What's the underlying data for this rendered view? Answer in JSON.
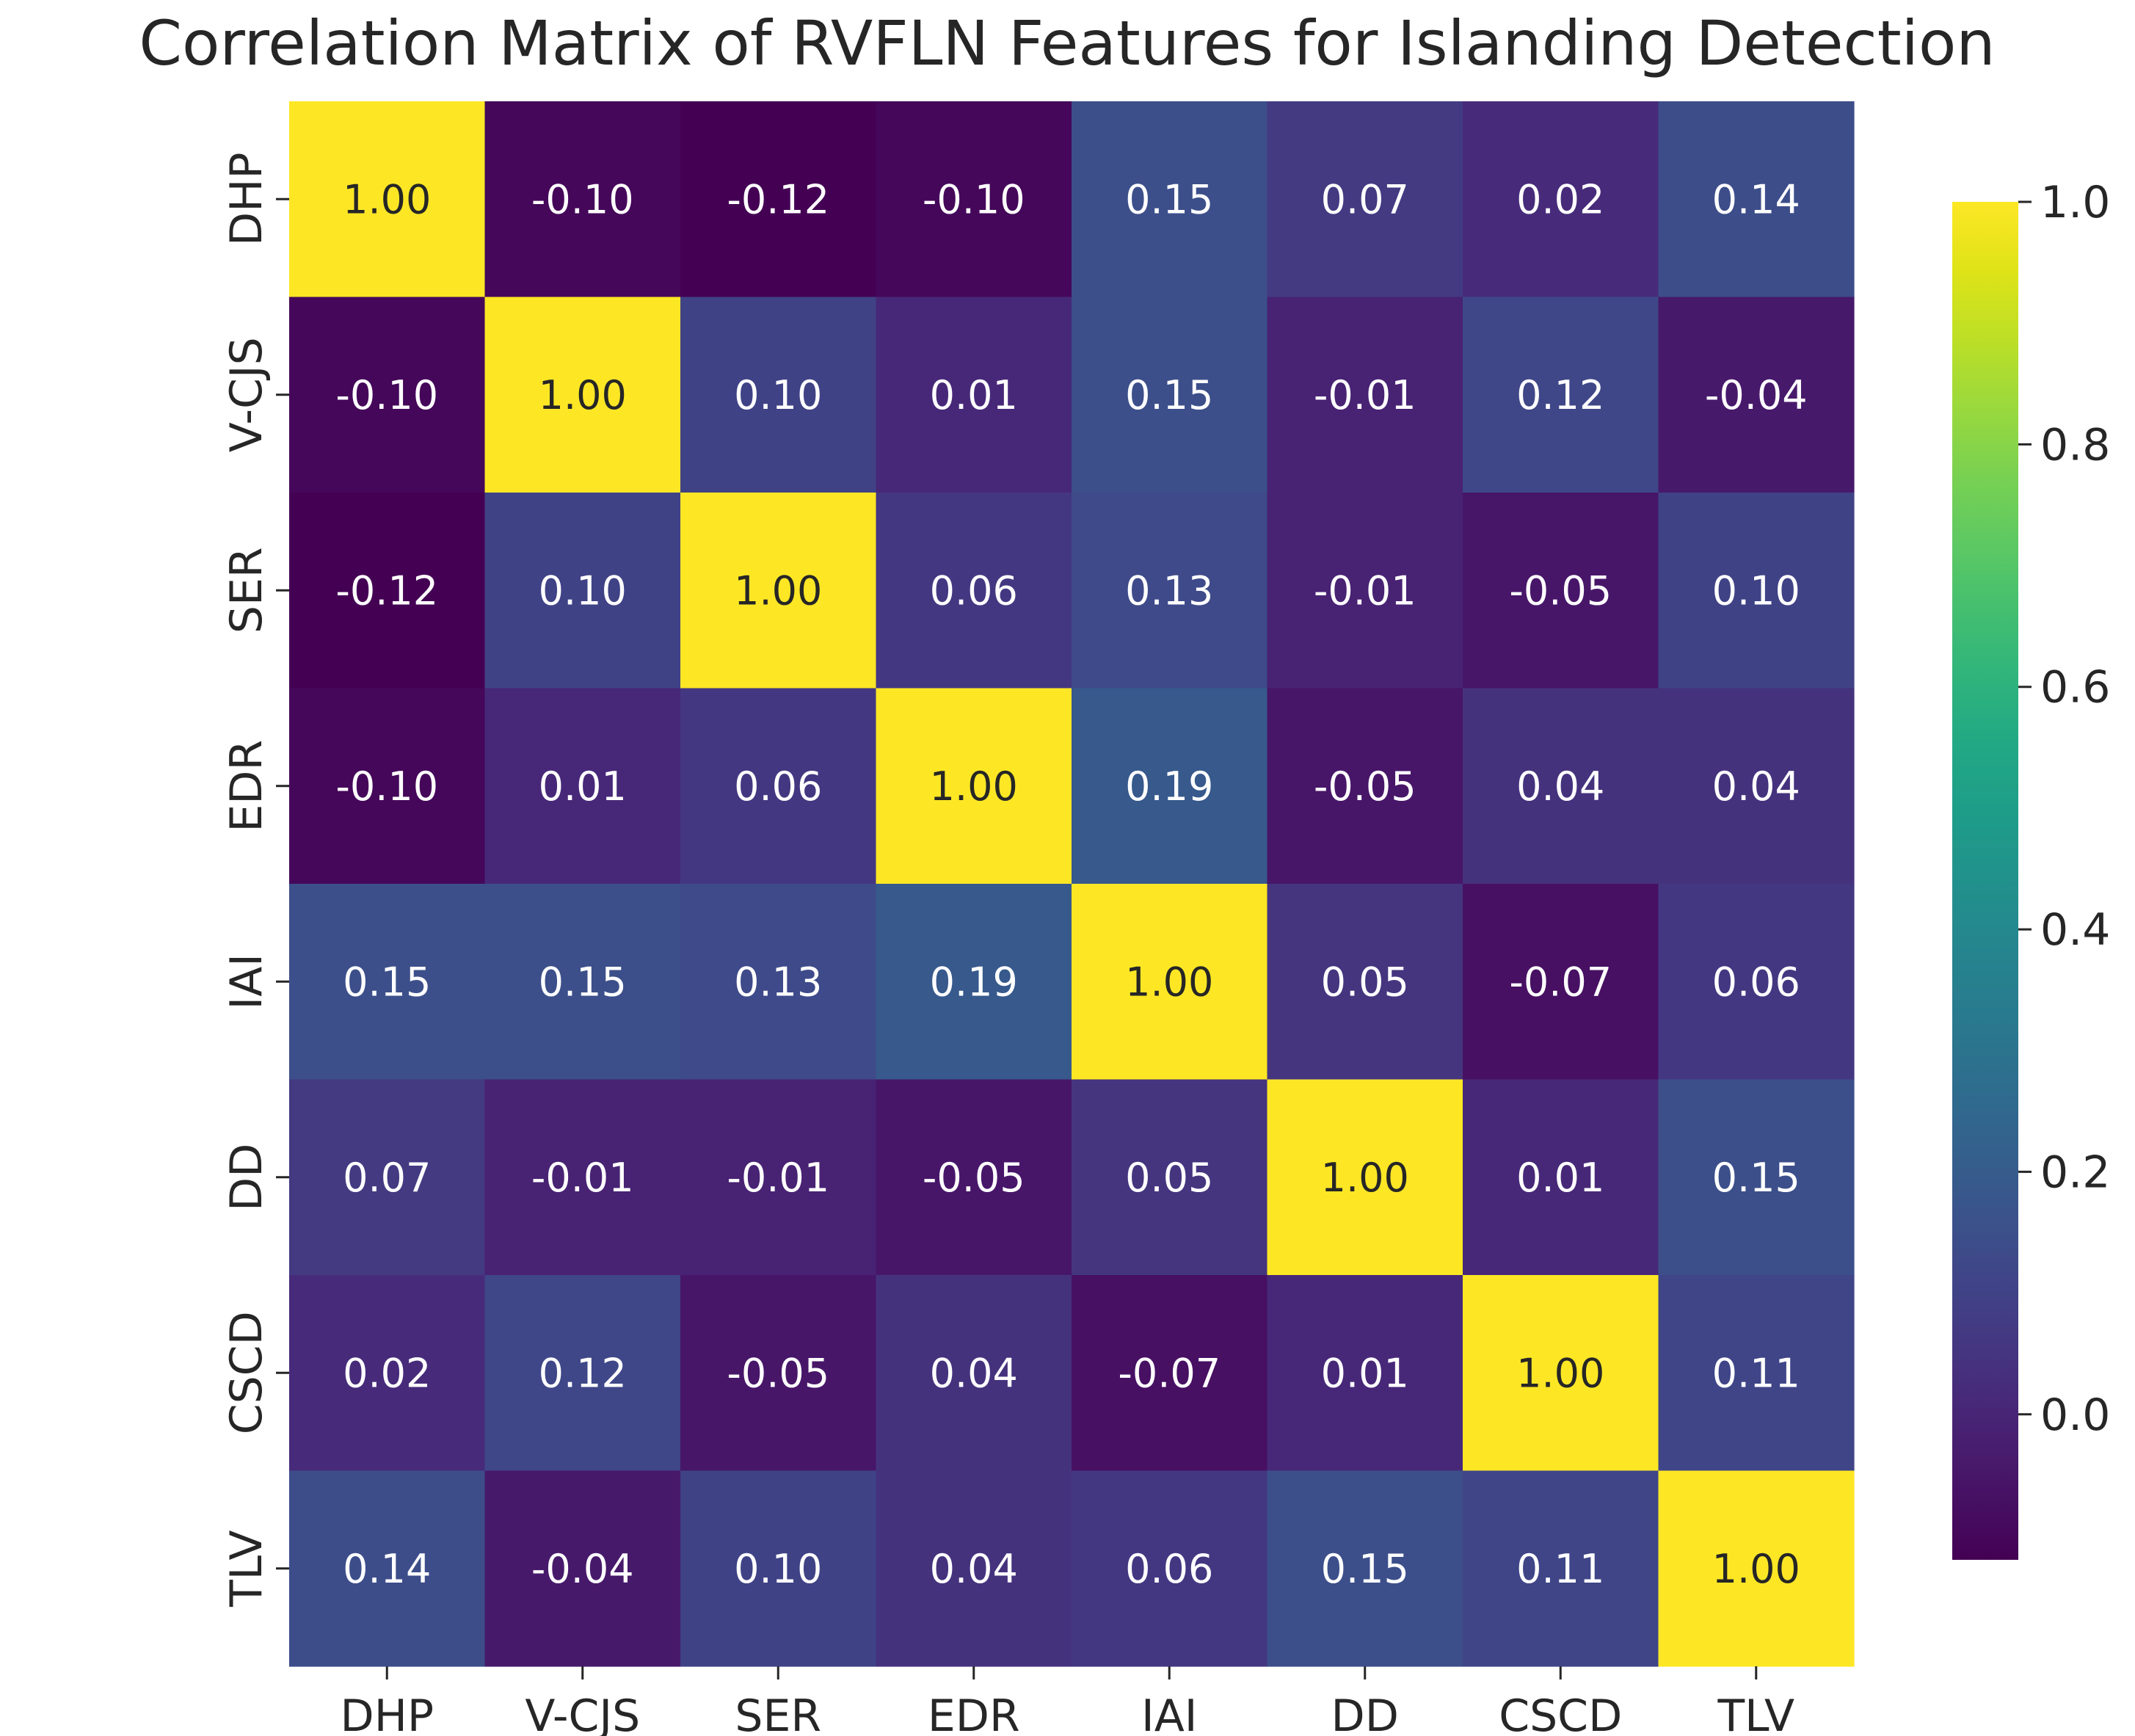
{
  "chart_data": {
    "type": "heatmap",
    "title": "Correlation Matrix of RVFLN Features for Islanding Detection",
    "xlabels": [
      "DHP",
      "V-CJS",
      "SER",
      "EDR",
      "IAI",
      "DD",
      "CSCD",
      "TLV"
    ],
    "ylabels": [
      "DHP",
      "V-CJS",
      "SER",
      "EDR",
      "IAI",
      "DD",
      "CSCD",
      "TLV"
    ],
    "values": [
      [
        1.0,
        -0.1,
        -0.12,
        -0.1,
        0.15,
        0.07,
        0.02,
        0.14
      ],
      [
        -0.1,
        1.0,
        0.1,
        0.01,
        0.15,
        -0.01,
        0.12,
        -0.04
      ],
      [
        -0.12,
        0.1,
        1.0,
        0.06,
        0.13,
        -0.01,
        -0.05,
        0.1
      ],
      [
        -0.1,
        0.01,
        0.06,
        1.0,
        0.19,
        -0.05,
        0.04,
        0.04
      ],
      [
        0.15,
        0.15,
        0.13,
        0.19,
        1.0,
        0.05,
        -0.07,
        0.06
      ],
      [
        0.07,
        -0.01,
        -0.01,
        -0.05,
        0.05,
        1.0,
        0.01,
        0.15
      ],
      [
        0.02,
        0.12,
        -0.05,
        0.04,
        -0.07,
        0.01,
        1.0,
        0.11
      ],
      [
        0.14,
        -0.04,
        0.1,
        0.04,
        0.06,
        0.15,
        0.11,
        1.0
      ]
    ],
    "colormap": "viridis",
    "vmin": -0.12,
    "vmax": 1.0,
    "colorbar_ticks": [
      0.0,
      0.2,
      0.4,
      0.6,
      0.8,
      1.0
    ],
    "colorbar_tick_labels": [
      "0.0",
      "0.2",
      "0.4",
      "0.6",
      "0.8",
      "1.0"
    ],
    "annotation_format": "2 decimals",
    "xlabel": "",
    "ylabel": ""
  }
}
